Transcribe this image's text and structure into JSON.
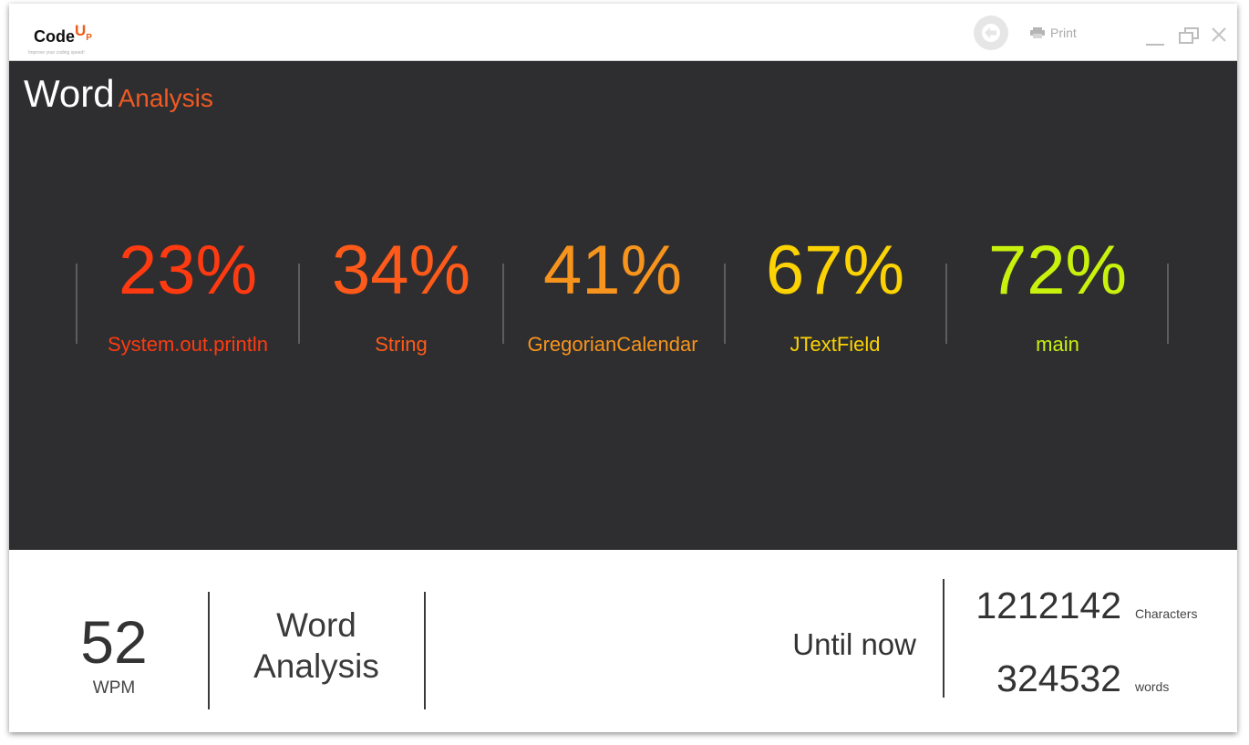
{
  "app": {
    "logo_text": "Code",
    "logo_up": "U",
    "logo_p": "P",
    "tagline": "Improve your coding speed!"
  },
  "toolbar": {
    "back_icon": "arrow-left-icon",
    "print_icon": "printer-icon",
    "print_label": "Print"
  },
  "window_controls": [
    "minimize-icon",
    "restore-icon",
    "close-icon"
  ],
  "heading": {
    "word": "Word",
    "analysis": "Analysis"
  },
  "stats": [
    {
      "value": "23%",
      "label": "System.out.println",
      "color": "#ff3a10"
    },
    {
      "value": "34%",
      "label": "String",
      "color": "#ff5a1a"
    },
    {
      "value": "41%",
      "label": "GregorianCalendar",
      "color": "#f7941d"
    },
    {
      "value": "67%",
      "label": "JTextField",
      "color": "#fbd203"
    },
    {
      "value": "72%",
      "label": "main",
      "color": "#c8f20d"
    }
  ],
  "footer": {
    "wpm_value": "52",
    "wpm_label": "WPM",
    "mode_line1": "Word",
    "mode_line2": "Analysis",
    "until_label": "Until now",
    "characters_value": "1212142",
    "characters_label": "Characters",
    "words_value": "324532",
    "words_label": "words"
  },
  "colors": {
    "accent": "#f05a22",
    "panel_bg": "#2e2e30"
  }
}
